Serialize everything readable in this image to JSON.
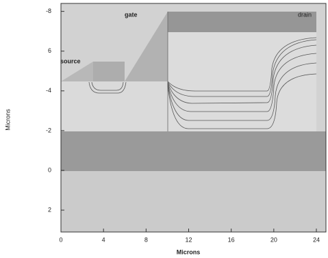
{
  "chart_data": {
    "type": "cross-section",
    "xlabel": "Microns",
    "ylabel": "Microns",
    "region_labels": [
      "source",
      "gate",
      "drain"
    ],
    "xlim": [
      0,
      24.9
    ],
    "ylim": [
      3.1,
      -8.4
    ],
    "xticks": [
      0,
      4,
      8,
      12,
      16,
      20,
      24
    ],
    "yticks": [
      -8,
      {
        "value": -6,
        "label": "6"
      },
      -4,
      -2,
      0,
      2
    ]
  }
}
